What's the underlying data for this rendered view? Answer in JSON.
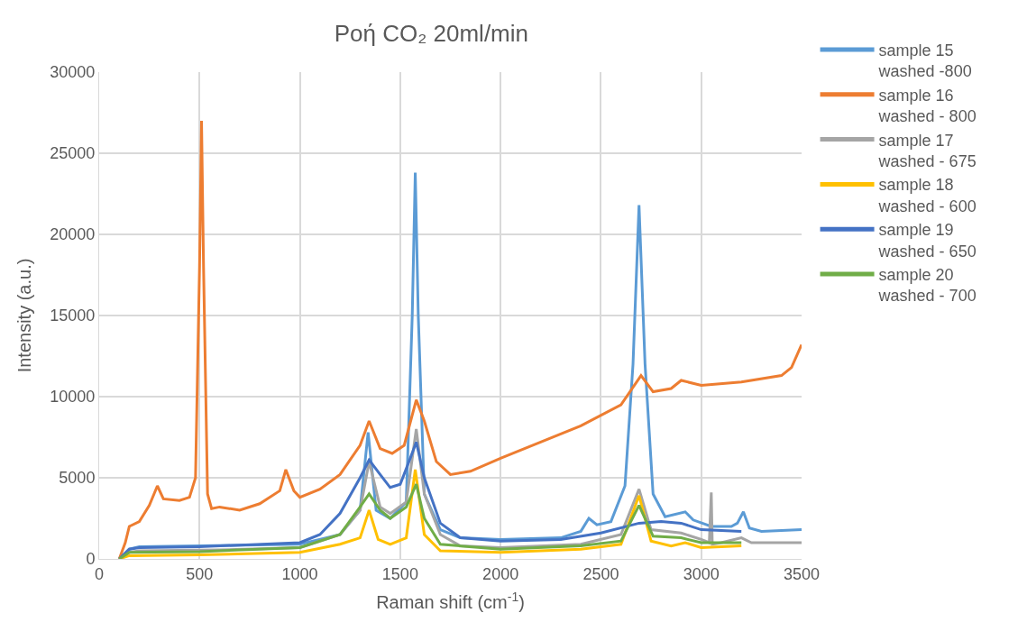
{
  "chart_data": {
    "type": "line",
    "title": "Ροή CO₂ 20ml/min",
    "xlabel": "Raman shift (cm$^{-1}$)",
    "ylabel": "Intensity (a.u.)",
    "xlim": [
      0,
      3500
    ],
    "xticks": [
      0,
      500,
      1000,
      1500,
      2000,
      2500,
      3000,
      3500
    ],
    "ylim": [
      0,
      30000
    ],
    "yticks": [
      0,
      5000,
      10000,
      15000,
      20000,
      25000,
      30000
    ],
    "grid": true,
    "legend": "right",
    "marker": "none",
    "line_style": "solid",
    "series": [
      {
        "name": "sample 15\nwashed -800",
        "color": "#5b9bd5",
        "x": [
          100,
          150,
          200,
          500,
          1000,
          1200,
          1300,
          1340,
          1380,
          1450,
          1530,
          1560,
          1575,
          1590,
          1620,
          1700,
          1800,
          2000,
          2300,
          2400,
          2440,
          2480,
          2550,
          2620,
          2660,
          2690,
          2720,
          2760,
          2820,
          2920,
          2960,
          3050,
          3150,
          3180,
          3210,
          3240,
          3300,
          3500
        ],
        "values": [
          0,
          600,
          750,
          800,
          900,
          1500,
          3000,
          7800,
          3000,
          2500,
          3500,
          15000,
          23800,
          15000,
          4000,
          1800,
          1300,
          1200,
          1300,
          1700,
          2500,
          2100,
          2300,
          4500,
          12000,
          21800,
          12000,
          4000,
          2600,
          2900,
          2400,
          2000,
          2000,
          2200,
          2900,
          1900,
          1700,
          1800
        ]
      },
      {
        "name": "sample 16\nwashed - 800",
        "color": "#ed7d31",
        "x": [
          100,
          130,
          150,
          200,
          250,
          290,
          320,
          400,
          450,
          480,
          500,
          510,
          520,
          540,
          560,
          600,
          700,
          800,
          900,
          930,
          970,
          1000,
          1100,
          1200,
          1300,
          1345,
          1400,
          1460,
          1520,
          1580,
          1620,
          1680,
          1750,
          1850,
          2000,
          2200,
          2400,
          2600,
          2700,
          2760,
          2850,
          2900,
          3000,
          3200,
          3400,
          3450,
          3500
        ],
        "values": [
          0,
          1000,
          2000,
          2300,
          3300,
          4500,
          3700,
          3600,
          3800,
          5000,
          18000,
          27000,
          18000,
          4000,
          3100,
          3200,
          3000,
          3400,
          4200,
          5500,
          4200,
          3800,
          4300,
          5200,
          7000,
          8500,
          6800,
          6500,
          7000,
          9800,
          8500,
          6000,
          5200,
          5400,
          6200,
          7200,
          8200,
          9500,
          11300,
          10300,
          10500,
          11000,
          10700,
          10900,
          11300,
          11800,
          13200
        ]
      },
      {
        "name": "sample 17\nwashed - 675",
        "color": "#a5a5a5",
        "x": [
          100,
          150,
          200,
          600,
          1000,
          1200,
          1300,
          1345,
          1400,
          1450,
          1530,
          1580,
          1620,
          1700,
          1800,
          2000,
          2400,
          2600,
          2690,
          2750,
          2900,
          3000,
          3040,
          3050,
          3055,
          3100,
          3200,
          3250,
          3500
        ],
        "values": [
          0,
          400,
          500,
          550,
          700,
          1500,
          3000,
          6000,
          3200,
          2800,
          3500,
          8000,
          4000,
          1500,
          800,
          700,
          900,
          1500,
          4300,
          1800,
          1600,
          1200,
          1000,
          4100,
          900,
          1000,
          1300,
          1000,
          1000
        ]
      },
      {
        "name": "sample 18\nwashed - 600",
        "color": "#ffc000",
        "x": [
          100,
          150,
          500,
          1000,
          1200,
          1300,
          1345,
          1390,
          1450,
          1530,
          1575,
          1620,
          1700,
          2000,
          2400,
          2600,
          2690,
          2750,
          2850,
          2920,
          3000,
          3200
        ],
        "values": [
          0,
          200,
          250,
          400,
          900,
          1300,
          3000,
          1200,
          900,
          1300,
          5500,
          1500,
          500,
          400,
          600,
          900,
          3900,
          1100,
          800,
          1000,
          700,
          800
        ]
      },
      {
        "name": "sample 19\nwashed - 650",
        "color": "#4472c4",
        "x": [
          100,
          150,
          200,
          500,
          1000,
          1100,
          1200,
          1300,
          1345,
          1400,
          1450,
          1500,
          1550,
          1580,
          1620,
          1700,
          1800,
          2000,
          2300,
          2500,
          2690,
          2800,
          2900,
          3000,
          3200
        ],
        "values": [
          0,
          600,
          700,
          750,
          1000,
          1500,
          2800,
          5000,
          6100,
          5200,
          4400,
          4600,
          6200,
          7200,
          5000,
          2200,
          1300,
          1100,
          1200,
          1600,
          2200,
          2300,
          2200,
          1800,
          1700
        ]
      },
      {
        "name": "sample 20\nwashed - 700",
        "color": "#70ad47",
        "x": [
          100,
          150,
          500,
          1000,
          1200,
          1300,
          1345,
          1400,
          1450,
          1530,
          1580,
          1620,
          1700,
          2000,
          2400,
          2600,
          2690,
          2760,
          2900,
          3000,
          3200
        ],
        "values": [
          0,
          400,
          450,
          700,
          1500,
          3200,
          4000,
          3000,
          2500,
          3200,
          4600,
          2500,
          900,
          600,
          800,
          1100,
          3300,
          1400,
          1300,
          1000,
          1000
        ]
      }
    ]
  }
}
